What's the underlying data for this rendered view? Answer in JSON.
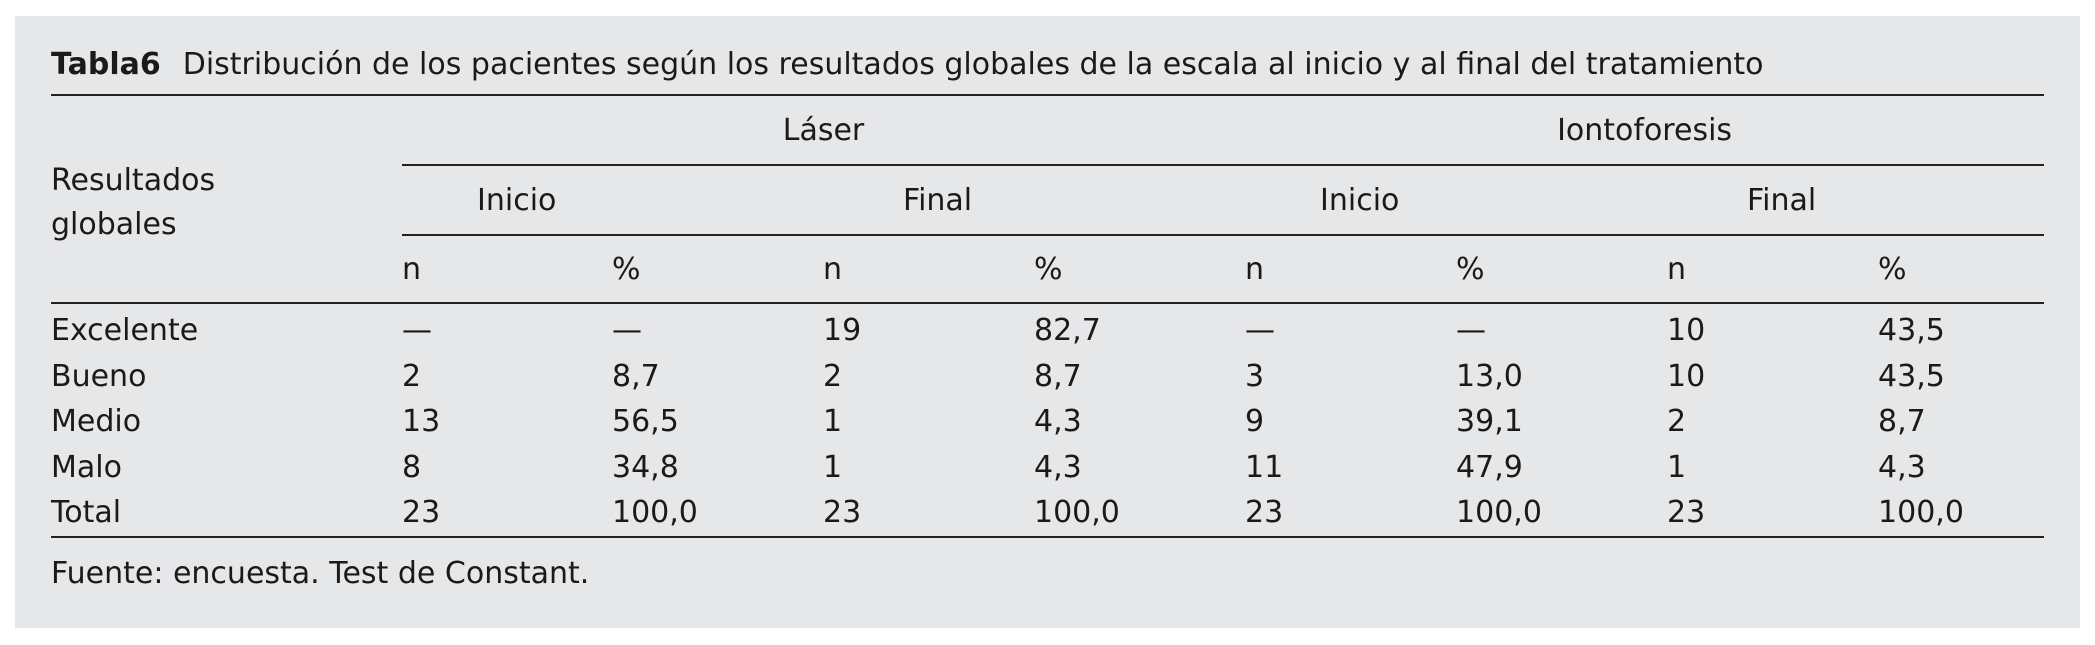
{
  "table": {
    "caption_label": "Tabla6",
    "caption_text": "Distribución de los pacientes según los resultados globales de la escala al inicio y al final del tratamiento",
    "row_header": [
      "Resultados",
      "globales"
    ],
    "groups": [
      "Láser",
      "Iontoforesis"
    ],
    "subgroups": [
      "Inicio",
      "Final",
      "Inicio",
      "Final"
    ],
    "columns": [
      "n",
      "%",
      "n",
      "%",
      "n",
      "%",
      "n",
      "%"
    ],
    "rows": [
      {
        "label": "Excelente",
        "cells": [
          "—",
          "—",
          "19",
          "82,7",
          "—",
          "—",
          "10",
          "43,5"
        ]
      },
      {
        "label": "Bueno",
        "cells": [
          "2",
          "8,7",
          "2",
          "8,7",
          "3",
          "13,0",
          "10",
          "43,5"
        ]
      },
      {
        "label": "Medio",
        "cells": [
          "13",
          "56,5",
          "1",
          "4,3",
          "9",
          "39,1",
          "2",
          "8,7"
        ]
      },
      {
        "label": "Malo",
        "cells": [
          "8",
          "34,8",
          "1",
          "4,3",
          "11",
          "47,9",
          "1",
          "4,3"
        ]
      },
      {
        "label": "Total",
        "cells": [
          "23",
          "100,0",
          "23",
          "100,0",
          "23",
          "100,0",
          "23",
          "100,0"
        ]
      }
    ],
    "footer": "Fuente: encuesta. Test de Constant."
  }
}
